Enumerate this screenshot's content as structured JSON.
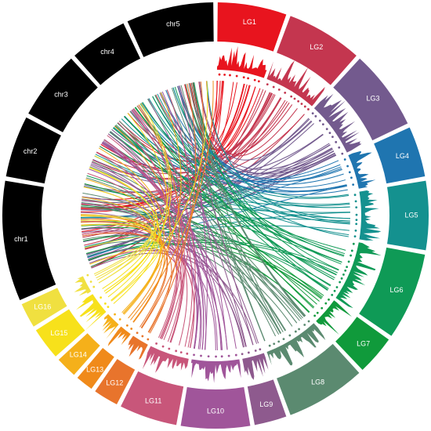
{
  "segments": [
    {
      "label": "LG1",
      "color": "#e8141e"
    },
    {
      "label": "LG2",
      "color": "#c4364f"
    },
    {
      "label": "LG3",
      "color": "#735a8e"
    },
    {
      "label": "LG4",
      "color": "#1f75b0"
    },
    {
      "label": "LG5",
      "color": "#14918f"
    },
    {
      "label": "LG6",
      "color": "#0f9a56"
    },
    {
      "label": "LG7",
      "color": "#109a3b"
    },
    {
      "label": "LG8",
      "color": "#5b8a70"
    },
    {
      "label": "LG9",
      "color": "#8e5a8e"
    },
    {
      "label": "LG10",
      "color": "#a0559a"
    },
    {
      "label": "LG11",
      "color": "#c8567a"
    },
    {
      "label": "LG12",
      "color": "#e8742c"
    },
    {
      "label": "LG13",
      "color": "#f08a1a"
    },
    {
      "label": "LG14",
      "color": "#f5b01a"
    },
    {
      "label": "LG15",
      "color": "#f7e11b"
    },
    {
      "label": "LG16",
      "color": "#f0e040"
    },
    {
      "label": "chr1",
      "color": "#000000"
    },
    {
      "label": "chr2",
      "color": "#000000"
    },
    {
      "label": "chr3",
      "color": "#000000"
    },
    {
      "label": "chr4",
      "color": "#000000"
    },
    {
      "label": "chr5",
      "color": "#000000"
    }
  ]
}
